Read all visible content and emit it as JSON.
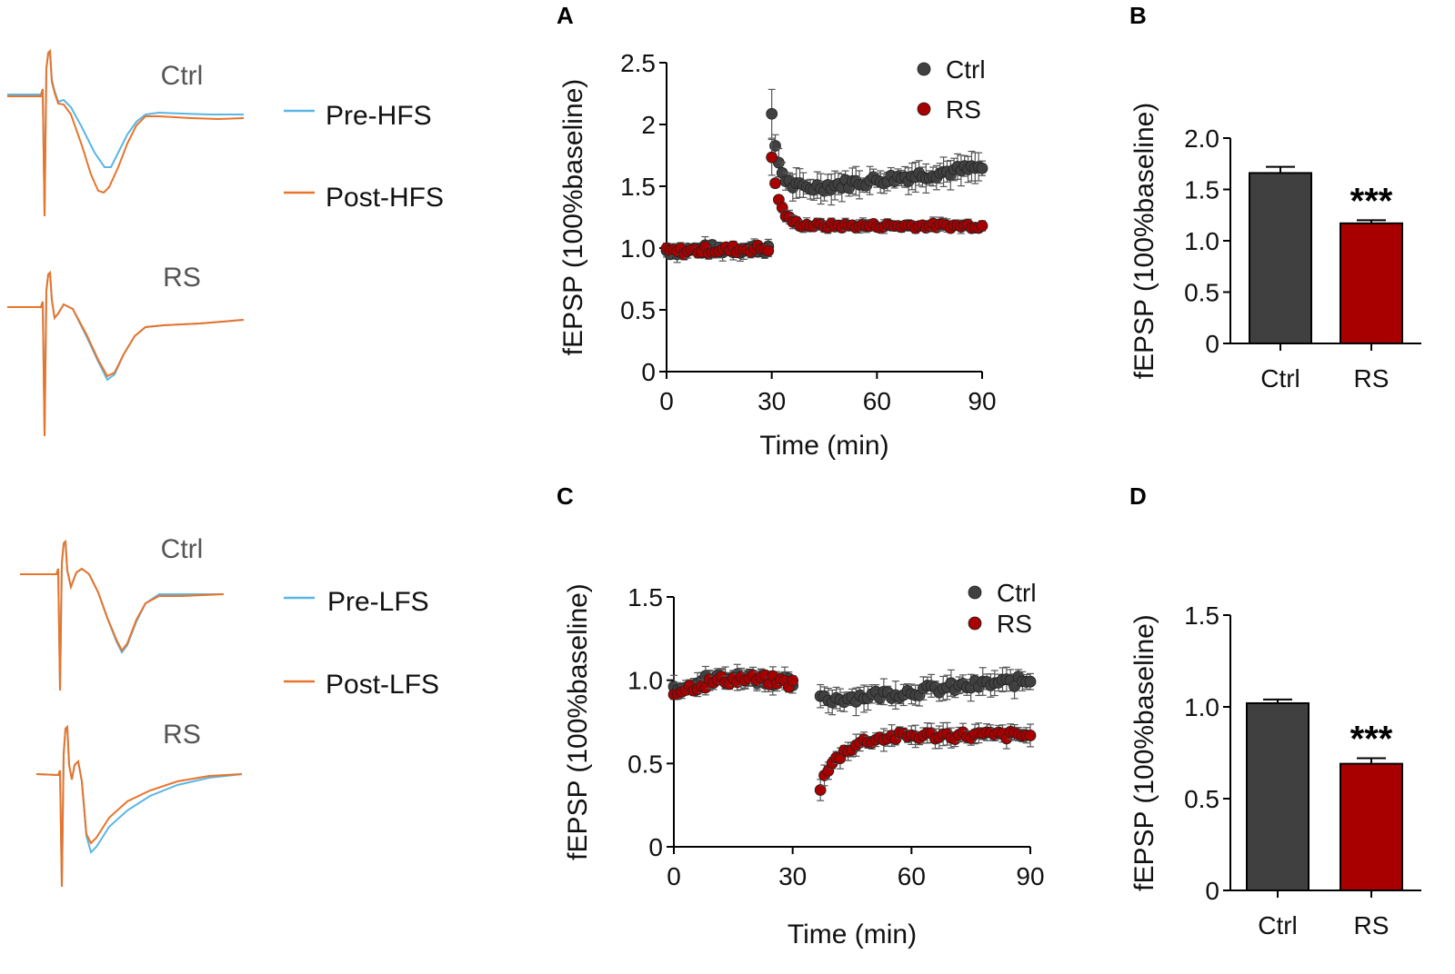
{
  "colors": {
    "ctrl": "#404040",
    "rs": "#a80000",
    "pre": "#5ab6e6",
    "post": "#e8742a",
    "axis": "#000000"
  },
  "traces": {
    "hfs": {
      "ctrl_label": "Ctrl",
      "rs_label": "RS",
      "legend_pre": "Pre-HFS",
      "legend_post": "Post-HFS"
    },
    "lfs": {
      "ctrl_label": "Ctrl",
      "rs_label": "RS",
      "legend_pre": "Pre-LFS",
      "legend_post": "Post-LFS"
    }
  },
  "chart_data": [
    {
      "panel": "A",
      "type": "scatter",
      "title": "",
      "xlabel": "Time (min)",
      "ylabel": "fEPSP (100%baseline)",
      "xlim": [
        0,
        90
      ],
      "ylim": [
        0,
        2.5
      ],
      "xticks": [
        "0",
        "30",
        "60",
        "90"
      ],
      "yticks": [
        "0",
        "0.5",
        "1.0",
        "1.5",
        "2",
        "2.5"
      ],
      "legend": [
        "Ctrl",
        "RS"
      ],
      "legend_position": "top-right",
      "series": [
        {
          "name": "Ctrl",
          "color_key": "ctrl",
          "segments": [
            {
              "x_start": 0,
              "x_end": 29,
              "y_start": 0.98,
              "y_end": 1.0,
              "peak": null,
              "noise": 0.04,
              "err": 0.05,
              "n": 30
            },
            {
              "x_start": 30,
              "x_end": 90,
              "y_start": 1.45,
              "y_end": 1.65,
              "peak": 2.05,
              "noise": 0.04,
              "err": 0.09,
              "n": 61
            }
          ]
        },
        {
          "name": "RS",
          "color_key": "rs",
          "segments": [
            {
              "x_start": 0,
              "x_end": 29,
              "y_start": 0.97,
              "y_end": 1.0,
              "peak": null,
              "noise": 0.03,
              "err": 0.04,
              "n": 30
            },
            {
              "x_start": 30,
              "x_end": 90,
              "y_start": 1.18,
              "y_end": 1.18,
              "peak": 1.72,
              "noise": 0.02,
              "err": 0.04,
              "n": 61
            }
          ]
        }
      ]
    },
    {
      "panel": "B",
      "type": "bar",
      "xlabel": "",
      "ylabel": "fEPSP (100%baseline)",
      "categories": [
        "Ctrl",
        "RS"
      ],
      "values": [
        1.66,
        1.17
      ],
      "errors": [
        0.06,
        0.03
      ],
      "ylim": [
        0,
        2.0
      ],
      "yticks": [
        "0",
        "0.5",
        "1.0",
        "1.5",
        "2.0"
      ],
      "annotation": "***"
    },
    {
      "panel": "C",
      "type": "scatter",
      "title": "",
      "xlabel": "Time (min)",
      "ylabel": "fEPSP (100%baseline)",
      "xlim": [
        0,
        90
      ],
      "ylim": [
        0,
        1.5
      ],
      "xticks": [
        "0",
        "30",
        "60",
        "90"
      ],
      "yticks": [
        "0",
        "0.5",
        "1.0",
        "1.5"
      ],
      "legend": [
        "Ctrl",
        "RS"
      ],
      "legend_position": "top-right",
      "series": [
        {
          "name": "Ctrl",
          "color_key": "ctrl",
          "segments": [
            {
              "x_start": 0,
              "x_end": 30,
              "y_start": 0.96,
              "y_end": 0.98,
              "peak": null,
              "bump": 0.05,
              "noise": 0.03,
              "err": 0.05,
              "n": 31
            },
            {
              "x_start": 37,
              "x_end": 90,
              "y_start": 0.88,
              "y_end": 1.0,
              "peak": null,
              "noise": 0.03,
              "err": 0.06,
              "n": 54
            }
          ]
        },
        {
          "name": "RS",
          "color_key": "rs",
          "segments": [
            {
              "x_start": 0,
              "x_end": 30,
              "y_start": 0.93,
              "y_end": 0.98,
              "peak": null,
              "bump": 0.05,
              "noise": 0.03,
              "err": 0.04,
              "n": 31
            },
            {
              "x_start": 37,
              "x_end": 90,
              "y_start": 0.36,
              "y_end": 0.67,
              "peak": null,
              "rise": true,
              "noise": 0.025,
              "err": 0.05,
              "n": 54
            }
          ]
        }
      ]
    },
    {
      "panel": "D",
      "type": "bar",
      "xlabel": "",
      "ylabel": "fEPSP (100%baseline)",
      "categories": [
        "Ctrl",
        "RS"
      ],
      "values": [
        1.02,
        0.69
      ],
      "errors": [
        0.02,
        0.03
      ],
      "ylim": [
        0,
        1.5
      ],
      "yticks": [
        "0",
        "0.5",
        "1.0",
        "1.5"
      ],
      "annotation": "***"
    }
  ]
}
